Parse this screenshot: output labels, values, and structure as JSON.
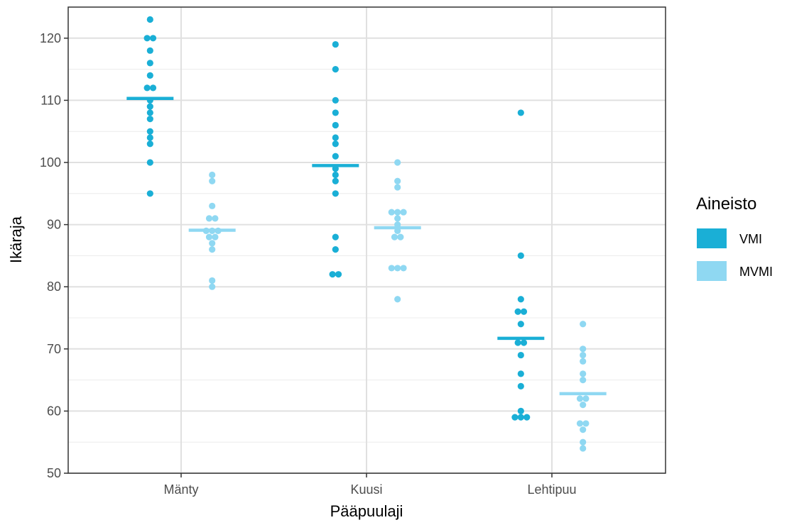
{
  "chart_data": {
    "type": "scatter",
    "title": "",
    "xlabel": "Pääpuulaji",
    "ylabel": "Ikäraja",
    "categories": [
      "Mänty",
      "Kuusi",
      "Lehtipuu"
    ],
    "ylim": [
      50,
      125
    ],
    "yticks": [
      50,
      60,
      70,
      80,
      90,
      100,
      110,
      120
    ],
    "grid": true,
    "legend": {
      "title": "Aineisto",
      "position": "right",
      "entries": [
        "VMI",
        "MVMI"
      ]
    },
    "series": [
      {
        "name": "VMI",
        "color": "#1aafd6",
        "points": {
          "Mänty": [
            123,
            120,
            120,
            118,
            116,
            114,
            112,
            112,
            110,
            109,
            108,
            107,
            105,
            104,
            103,
            100,
            95
          ],
          "Kuusi": [
            119,
            115,
            110,
            108,
            106,
            104,
            103,
            101,
            99,
            98,
            97,
            95,
            88,
            86,
            82,
            82
          ],
          "Lehtipuu": [
            108,
            85,
            78,
            76,
            76,
            74,
            71,
            71,
            69,
            66,
            64,
            60,
            59,
            59,
            59
          ]
        },
        "means": {
          "Mänty": 110.3,
          "Kuusi": 99.5,
          "Lehtipuu": 71.7
        }
      },
      {
        "name": "MVMI",
        "color": "#8fd8f2",
        "points": {
          "Mänty": [
            98,
            97,
            93,
            91,
            91,
            89,
            89,
            89,
            88,
            88,
            87,
            86,
            81,
            80
          ],
          "Kuusi": [
            100,
            97,
            96,
            92,
            92,
            92,
            91,
            90,
            89,
            88,
            88,
            83,
            83,
            83,
            78
          ],
          "Lehtipuu": [
            74,
            70,
            69,
            68,
            66,
            65,
            62,
            62,
            61,
            58,
            58,
            57,
            55,
            54
          ]
        },
        "means": {
          "Mänty": 89.1,
          "Kuusi": 89.5,
          "Lehtipuu": 62.8
        }
      }
    ]
  }
}
